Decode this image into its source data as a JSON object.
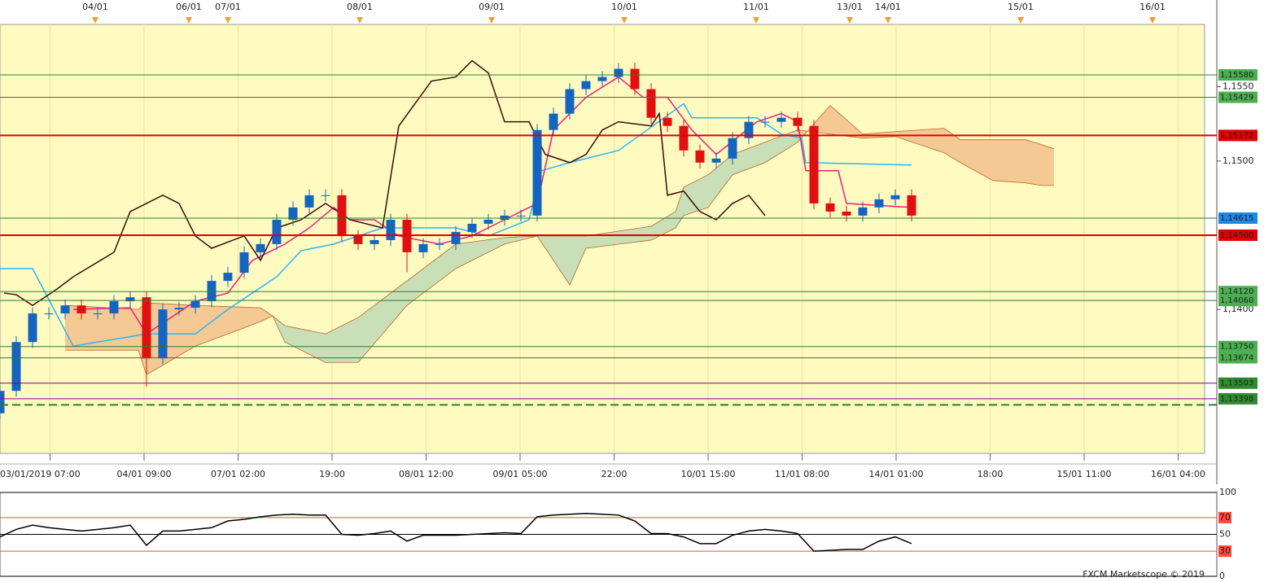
{
  "chart_data": [
    {
      "type": "candlestick",
      "xlim": [
        0,
        74
      ],
      "ylim": [
        1.1303,
        1.1592
      ],
      "yticks": [
        {
          "value": 1.155,
          "label": "1,1550"
        },
        {
          "value": 1.15,
          "label": "1,1500"
        },
        {
          "value": 1.14,
          "label": "1,1400"
        }
      ],
      "xticks": [
        {
          "value": 3.075,
          "label": "03/01/2019 07:00"
        },
        {
          "value": 8.85,
          "label": "04/01 09:00"
        },
        {
          "value": 14.625,
          "label": "07/01 02:00"
        },
        {
          "value": 20.4,
          "label": "19:00"
        },
        {
          "value": 26.175,
          "label": "08/01 12:00"
        },
        {
          "value": 31.95,
          "label": "09/01 05:00"
        },
        {
          "value": 37.725,
          "label": "22:00"
        },
        {
          "value": 43.5,
          "label": "10/01 15:00"
        },
        {
          "value": 49.275,
          "label": "11/01 08:00"
        },
        {
          "value": 55.05,
          "label": "14/01 01:00"
        },
        {
          "value": 60.825,
          "label": "18:00"
        },
        {
          "value": 66.6,
          "label": "15/01 11:00"
        },
        {
          "value": 72.375,
          "label": "16/01 04:00"
        }
      ],
      "top_markers": {
        "x": [
          5.85,
          11.6,
          14,
          22.1,
          30.2,
          38.35,
          46.45,
          52.2,
          54.55,
          62.7,
          70.8
        ],
        "labels": [
          "04/01",
          "06/01",
          "07/01",
          "08/01",
          "09/01",
          "10/01",
          "11/01",
          "13/01",
          "14/01",
          "15/01",
          "16/01"
        ],
        "color": "#f0a030"
      },
      "up_color": "#1565c0",
      "down_color": "#e01010",
      "open": [
        1.133,
        1.13451,
        1.1378,
        1.13973,
        1.13973,
        1.14027,
        1.13973,
        1.13973,
        1.14055,
        1.14082,
        1.1367,
        1.14,
        1.14011,
        1.14055,
        1.14192,
        1.14247,
        1.14385,
        1.1444,
        1.14604,
        1.14687,
        1.14769,
        1.14769,
        1.14495,
        1.1444,
        1.14467,
        1.14604,
        1.14385,
        1.1444,
        1.1444,
        1.14522,
        1.14577,
        1.14604,
        1.14632,
        1.14632,
        1.15209,
        1.15319,
        1.15484,
        1.15538,
        1.15566,
        1.15621,
        1.15484,
        1.15291,
        1.15236,
        1.15071,
        1.14989,
        1.15016,
        1.15154,
        1.15264,
        1.15264,
        1.15291,
        1.15236,
        1.14714,
        1.14659,
        1.14632,
        1.14687,
        1.14742,
        1.14769
      ],
      "high": [
        1.13491,
        1.1382,
        1.14013,
        1.14013,
        1.14067,
        1.14067,
        1.14013,
        1.14095,
        1.14122,
        1.14122,
        1.1404,
        1.14051,
        1.14095,
        1.14232,
        1.14287,
        1.14425,
        1.1448,
        1.14644,
        1.14727,
        1.14809,
        1.14809,
        1.14809,
        1.14535,
        1.14507,
        1.14644,
        1.14644,
        1.1448,
        1.1448,
        1.14562,
        1.14617,
        1.14644,
        1.14672,
        1.14672,
        1.15249,
        1.15359,
        1.15524,
        1.15578,
        1.15606,
        1.15661,
        1.15661,
        1.15524,
        1.15331,
        1.15276,
        1.15111,
        1.15056,
        1.15194,
        1.15304,
        1.15304,
        1.15331,
        1.15331,
        1.15276,
        1.14754,
        1.14699,
        1.14727,
        1.14782,
        1.14809,
        1.14809
      ],
      "low": [
        1.1326,
        1.13411,
        1.1374,
        1.13933,
        1.13933,
        1.13933,
        1.13933,
        1.13933,
        1.14015,
        1.1348,
        1.1363,
        1.1396,
        1.13971,
        1.14015,
        1.14152,
        1.14207,
        1.14345,
        1.144,
        1.14564,
        1.14647,
        1.14729,
        1.14455,
        1.144,
        1.144,
        1.14427,
        1.1425,
        1.14345,
        1.144,
        1.144,
        1.14482,
        1.14537,
        1.14564,
        1.14592,
        1.14592,
        1.15169,
        1.15279,
        1.15444,
        1.15498,
        1.15526,
        1.15444,
        1.15251,
        1.15196,
        1.15031,
        1.14949,
        1.14949,
        1.14976,
        1.15114,
        1.15224,
        1.15224,
        1.15196,
        1.14674,
        1.14619,
        1.14592,
        1.14592,
        1.14647,
        1.14702,
        1.14592
      ],
      "close": [
        1.13451,
        1.1378,
        1.13973,
        1.13973,
        1.14027,
        1.13973,
        1.13973,
        1.14055,
        1.14082,
        1.1367,
        1.14,
        1.14011,
        1.14055,
        1.14192,
        1.14247,
        1.14385,
        1.1444,
        1.14604,
        1.14687,
        1.14769,
        1.14769,
        1.14495,
        1.1444,
        1.14467,
        1.14604,
        1.14385,
        1.1444,
        1.1444,
        1.14522,
        1.14577,
        1.14604,
        1.14632,
        1.14632,
        1.15209,
        1.15319,
        1.15484,
        1.15538,
        1.15566,
        1.15621,
        1.15484,
        1.15291,
        1.15236,
        1.15071,
        1.14989,
        1.15016,
        1.15154,
        1.15264,
        1.15264,
        1.15291,
        1.15236,
        1.14714,
        1.14659,
        1.14632,
        1.14687,
        1.14742,
        1.14769,
        1.14632
      ],
      "cloud": {
        "x": [
          4,
          8.5,
          9,
          12,
          16,
          16.75,
          17.5,
          20,
          22,
          25,
          28,
          31,
          33,
          35,
          36,
          40,
          41.5,
          42,
          43.5,
          45,
          47,
          49,
          51,
          53,
          55,
          58,
          59,
          61,
          63,
          64,
          64.75
        ],
        "span_a": [
          1.13725,
          1.13725,
          1.1356,
          1.13753,
          1.13918,
          1.13956,
          1.1389,
          1.13835,
          1.13945,
          1.14192,
          1.1444,
          1.14484,
          1.14495,
          1.14495,
          1.14495,
          1.1456,
          1.14659,
          1.14824,
          1.14907,
          1.15044,
          1.15126,
          1.15209,
          1.15181,
          1.15154,
          1.15165,
          1.15055,
          1.14989,
          1.14868,
          1.14852,
          1.14835,
          1.14835
        ],
        "span_b": [
          1.14027,
          1.14,
          1.14044,
          1.14027,
          1.14011,
          1.13956,
          1.1378,
          1.13643,
          1.13643,
          1.14027,
          1.14275,
          1.1444,
          1.14495,
          1.14165,
          1.14412,
          1.14467,
          1.14549,
          1.14632,
          1.14687,
          1.14907,
          1.14989,
          1.15126,
          1.15374,
          1.15181,
          1.15198,
          1.1522,
          1.15143,
          1.15143,
          1.15143,
          1.1511,
          1.15082
        ],
        "up_color": "#c8dfb8",
        "down_color": "#f5c994",
        "line_color": "#b8662a"
      },
      "lines": [
        {
          "color": "#29b6f6",
          "x": [
            0,
            2,
            4.5,
            9,
            12,
            14,
            17,
            18.5,
            20.5,
            23.5,
            28,
            30,
            32.5,
            33.25,
            35,
            38,
            42,
            42.5,
            46.5,
            48,
            49.25,
            49.5,
            56
          ],
          "values": [
            1.14275,
            1.14275,
            1.13753,
            1.13835,
            1.13835,
            1.14,
            1.1422,
            1.14396,
            1.1444,
            1.14549,
            1.14549,
            1.14495,
            1.14604,
            1.14934,
            1.14989,
            1.15071,
            1.15385,
            1.15291,
            1.15291,
            1.15181,
            1.15154,
            1.14989,
            1.14973
          ]
        },
        {
          "color": "#e8207a",
          "x": [
            4.5,
            8,
            9,
            12,
            14,
            15.5,
            17.5,
            19,
            20.5,
            21.5,
            23,
            24.5,
            27,
            29,
            31.5,
            33,
            34,
            36,
            38,
            39.5,
            41,
            42.5,
            44,
            46.5,
            48,
            49,
            49.5,
            51.5,
            52,
            56
          ],
          "values": [
            1.14,
            1.14011,
            1.13835,
            1.14055,
            1.1411,
            1.1433,
            1.1444,
            1.14549,
            1.14687,
            1.14604,
            1.14604,
            1.14495,
            1.1444,
            1.14495,
            1.14632,
            1.14714,
            1.15209,
            1.15429,
            1.15566,
            1.15429,
            1.15429,
            1.15209,
            1.15044,
            1.15264,
            1.15319,
            1.15264,
            1.14934,
            1.14934,
            1.14714,
            1.14687
          ]
        },
        {
          "color": "#3a0c0c",
          "x": [
            0.25,
            1,
            2,
            3.5,
            4.5,
            7,
            8,
            10,
            11,
            12,
            13,
            15,
            16,
            17,
            18.5,
            20,
            21.5,
            23.5,
            24.5,
            26.5,
            28,
            29,
            30,
            31,
            32.5,
            33.5,
            35,
            36,
            37,
            38,
            40,
            40.5,
            41,
            42,
            43,
            44,
            45,
            46,
            47
          ],
          "values": [
            1.1411,
            1.14099,
            1.14027,
            1.14137,
            1.1422,
            1.14385,
            1.14659,
            1.14769,
            1.14714,
            1.14495,
            1.14412,
            1.14495,
            1.1433,
            1.14549,
            1.14604,
            1.14714,
            1.14604,
            1.14549,
            1.15236,
            1.15538,
            1.15566,
            1.15676,
            1.15593,
            1.15264,
            1.15264,
            1.15044,
            1.14989,
            1.15044,
            1.15209,
            1.15264,
            1.15236,
            1.15319,
            1.14769,
            1.14797,
            1.14659,
            1.14604,
            1.14714,
            1.14769,
            1.14632
          ]
        }
      ],
      "levels": [
        {
          "value": 1.1558,
          "label": "1,15580",
          "color": "#2e7d32",
          "box": "#4caf50",
          "text_color": "#8e24aa"
        },
        {
          "value": 1.15429,
          "label": "1,15429",
          "color": "#2e7d32",
          "box": "#4caf50",
          "text_color": "#8e24aa"
        },
        {
          "value": 1.15172,
          "label": "1,15172",
          "color": "#e00000",
          "box": "#e00000",
          "text_color": "#ffffff"
        },
        {
          "value": 1.14615,
          "label": "1,14615",
          "color": "#2e7d32",
          "box": "#1e88e5",
          "text_color": "#ffffff"
        },
        {
          "value": 1.145,
          "label": "1,14500",
          "color": "#e00000",
          "box": "#e00000",
          "text_color": "#ffffff"
        },
        {
          "value": 1.1412,
          "label": "1,14120",
          "color": "#2e7d32",
          "box": "#4caf50",
          "text_color": "#8e24aa"
        },
        {
          "value": 1.1406,
          "label": "1,14060",
          "color": "#2e7d32",
          "box": "#4caf50",
          "text_color": "#8e24aa"
        },
        {
          "value": 1.1375,
          "label": "1,13750",
          "color": "#2e7d32",
          "box": "#4caf50",
          "text_color": "#8e24aa"
        },
        {
          "value": 1.13674,
          "label": "1,13674",
          "color": "#2e7d32",
          "box": "#4caf50",
          "text_color": "#8e24aa"
        },
        {
          "value": 1.13503,
          "label": "1,13503",
          "color": "#800080",
          "box": "#2e8b2e",
          "text_color": "#111111"
        },
        {
          "value": 1.13398,
          "label": "1,13398",
          "color": "#800080",
          "box": "#2e8b2e",
          "text_color": "#111111"
        },
        {
          "value": 1.13357,
          "color": "#2e7d32",
          "dashed": true
        }
      ]
    },
    {
      "type": "rsi",
      "ylim": [
        0,
        100
      ],
      "yticks": [
        0,
        30,
        50,
        70,
        100
      ],
      "tick_colors": [
        "#000000",
        "#ff4a3a",
        "#000000",
        "#ff4a3a",
        "#000000"
      ],
      "color": "#000000",
      "values": [
        47,
        56,
        61,
        58,
        56,
        54,
        56,
        58,
        61,
        37,
        54,
        54,
        56,
        58,
        66,
        68,
        71,
        73,
        74,
        73,
        73,
        50,
        49,
        51,
        54,
        42,
        49,
        49,
        49,
        50,
        51,
        52,
        51,
        71,
        73,
        74,
        75,
        74,
        73,
        66,
        51,
        51,
        47,
        39,
        39,
        49,
        54,
        56,
        54,
        51,
        30,
        31,
        32,
        32,
        42,
        47,
        39
      ],
      "source": "FXCM Marketscope © 2019"
    }
  ]
}
